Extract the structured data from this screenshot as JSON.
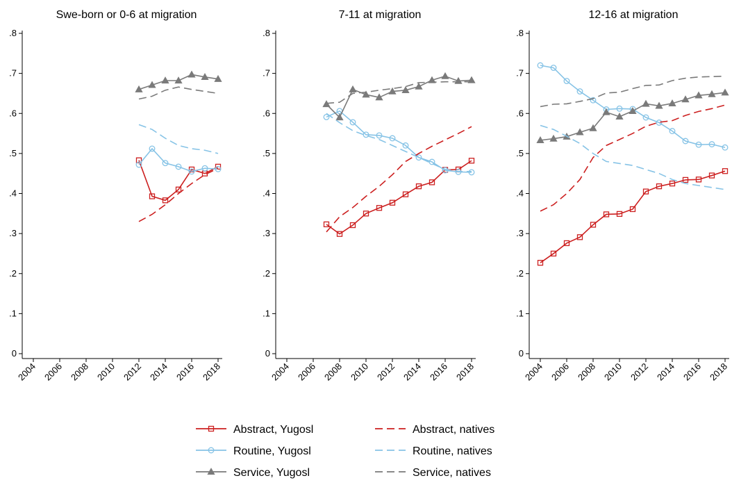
{
  "chart_data": [
    {
      "type": "line",
      "title": "Swe-born or 0-6 at migration",
      "x": [
        2012,
        2013,
        2014,
        2015,
        2016,
        2017,
        2018
      ],
      "xlim": [
        2004,
        2018
      ],
      "xticks": [
        2004,
        2006,
        2008,
        2010,
        2012,
        2014,
        2016,
        2018
      ],
      "ylim": [
        0,
        0.8
      ],
      "yticks": [
        0,
        {
          "value": 0.1,
          "label": ".1"
        },
        {
          "value": 0.2,
          "label": ".2"
        },
        {
          "value": 0.3,
          "label": ".3"
        },
        {
          "value": 0.4,
          "label": ".4"
        },
        {
          "value": 0.5,
          "label": ".5"
        },
        {
          "value": 0.6,
          "label": ".6"
        },
        {
          "value": 0.7,
          "label": ".7"
        },
        {
          "value": 0.8,
          "label": ".8"
        }
      ],
      "series": [
        {
          "name": "Abstract, Yugosl",
          "color": "#cc1f1f",
          "marker": "square",
          "dash": false,
          "values": [
            0.483,
            0.393,
            0.383,
            0.41,
            0.46,
            0.45,
            0.467
          ]
        },
        {
          "name": "Routine, Yugosl",
          "color": "#86c3e6",
          "marker": "circle",
          "dash": false,
          "values": [
            0.472,
            0.512,
            0.476,
            0.467,
            0.455,
            0.463,
            0.461
          ]
        },
        {
          "name": "Service, Yugosl",
          "color": "#7a7a7a",
          "marker": "triangle",
          "dash": false,
          "values": [
            0.66,
            0.671,
            0.682,
            0.682,
            0.697,
            0.691,
            0.686
          ]
        },
        {
          "name": "Abstract, natives",
          "color": "#cc1f1f",
          "marker": "none",
          "dash": true,
          "values": [
            0.33,
            0.348,
            0.372,
            0.4,
            0.425,
            0.447,
            0.463
          ]
        },
        {
          "name": "Routine, natives",
          "color": "#86c3e6",
          "marker": "none",
          "dash": true,
          "values": [
            0.572,
            0.56,
            0.538,
            0.52,
            0.512,
            0.508,
            0.5
          ]
        },
        {
          "name": "Service, natives",
          "color": "#7a7a7a",
          "marker": "none",
          "dash": true,
          "values": [
            0.636,
            0.643,
            0.658,
            0.666,
            0.66,
            0.655,
            0.65
          ]
        }
      ]
    },
    {
      "type": "line",
      "title": "7-11 at migration",
      "x": [
        2007,
        2008,
        2009,
        2010,
        2011,
        2012,
        2013,
        2014,
        2015,
        2016,
        2017,
        2018
      ],
      "xlim": [
        2004,
        2018
      ],
      "xticks": [
        2004,
        2006,
        2008,
        2010,
        2012,
        2014,
        2016,
        2018
      ],
      "ylim": [
        0,
        0.8
      ],
      "yticks": [
        0,
        {
          "value": 0.1,
          "label": ".1"
        },
        {
          "value": 0.2,
          "label": ".2"
        },
        {
          "value": 0.3,
          "label": ".3"
        },
        {
          "value": 0.4,
          "label": ".4"
        },
        {
          "value": 0.5,
          "label": ".5"
        },
        {
          "value": 0.6,
          "label": ".6"
        },
        {
          "value": 0.7,
          "label": ".7"
        },
        {
          "value": 0.8,
          "label": ".8"
        }
      ],
      "series": [
        {
          "color": "#cc1f1f",
          "marker": "square",
          "dash": false,
          "values": [
            0.323,
            0.299,
            0.321,
            0.35,
            0.364,
            0.377,
            0.398,
            0.418,
            0.428,
            0.459,
            0.46,
            0.482
          ]
        },
        {
          "color": "#86c3e6",
          "marker": "circle",
          "dash": false,
          "values": [
            0.591,
            0.606,
            0.578,
            0.547,
            0.545,
            0.538,
            0.52,
            0.49,
            0.479,
            0.458,
            0.454,
            0.453
          ]
        },
        {
          "color": "#7a7a7a",
          "marker": "triangle",
          "dash": false,
          "values": [
            0.623,
            0.59,
            0.66,
            0.647,
            0.64,
            0.655,
            0.658,
            0.667,
            0.683,
            0.693,
            0.681,
            0.683
          ]
        },
        {
          "color": "#cc1f1f",
          "marker": "none",
          "dash": true,
          "values": [
            0.304,
            0.342,
            0.365,
            0.393,
            0.418,
            0.447,
            0.48,
            0.5,
            0.518,
            0.534,
            0.55,
            0.567
          ]
        },
        {
          "color": "#86c3e6",
          "marker": "none",
          "dash": true,
          "values": [
            0.6,
            0.577,
            0.557,
            0.545,
            0.535,
            0.52,
            0.505,
            0.49,
            0.475,
            0.46,
            0.455,
            0.455
          ]
        },
        {
          "color": "#7a7a7a",
          "marker": "none",
          "dash": true,
          "values": [
            0.625,
            0.628,
            0.65,
            0.653,
            0.658,
            0.662,
            0.667,
            0.677,
            0.678,
            0.679,
            0.679,
            0.679
          ]
        }
      ]
    },
    {
      "type": "line",
      "title": "12-16 at migration",
      "x": [
        2004,
        2005,
        2006,
        2007,
        2008,
        2009,
        2010,
        2011,
        2012,
        2013,
        2014,
        2015,
        2016,
        2017,
        2018
      ],
      "xlim": [
        2004,
        2018
      ],
      "xticks": [
        2004,
        2006,
        2008,
        2010,
        2012,
        2014,
        2016,
        2018
      ],
      "ylim": [
        0,
        0.8
      ],
      "yticks": [
        0,
        {
          "value": 0.1,
          "label": ".1"
        },
        {
          "value": 0.2,
          "label": ".2"
        },
        {
          "value": 0.3,
          "label": ".3"
        },
        {
          "value": 0.4,
          "label": ".4"
        },
        {
          "value": 0.5,
          "label": ".5"
        },
        {
          "value": 0.6,
          "label": ".6"
        },
        {
          "value": 0.7,
          "label": ".7"
        },
        {
          "value": 0.8,
          "label": ".8"
        }
      ],
      "series": [
        {
          "color": "#cc1f1f",
          "marker": "square",
          "dash": false,
          "values": [
            0.227,
            0.25,
            0.276,
            0.291,
            0.322,
            0.348,
            0.349,
            0.361,
            0.405,
            0.418,
            0.425,
            0.434,
            0.435,
            0.445,
            0.456
          ]
        },
        {
          "color": "#86c3e6",
          "marker": "circle",
          "dash": false,
          "values": [
            0.72,
            0.714,
            0.681,
            0.655,
            0.633,
            0.61,
            0.612,
            0.611,
            0.59,
            0.577,
            0.556,
            0.531,
            0.522,
            0.523,
            0.515
          ]
        },
        {
          "color": "#7a7a7a",
          "marker": "triangle",
          "dash": false,
          "values": [
            0.533,
            0.537,
            0.542,
            0.553,
            0.563,
            0.603,
            0.592,
            0.606,
            0.624,
            0.619,
            0.625,
            0.635,
            0.645,
            0.648,
            0.652
          ]
        },
        {
          "color": "#cc1f1f",
          "marker": "none",
          "dash": true,
          "values": [
            0.356,
            0.372,
            0.4,
            0.435,
            0.49,
            0.52,
            0.535,
            0.55,
            0.568,
            0.578,
            0.582,
            0.595,
            0.605,
            0.612,
            0.621
          ]
        },
        {
          "color": "#86c3e6",
          "marker": "none",
          "dash": true,
          "values": [
            0.57,
            0.56,
            0.543,
            0.525,
            0.5,
            0.48,
            0.475,
            0.47,
            0.46,
            0.45,
            0.435,
            0.425,
            0.42,
            0.415,
            0.41
          ]
        },
        {
          "color": "#7a7a7a",
          "marker": "none",
          "dash": true,
          "values": [
            0.617,
            0.623,
            0.624,
            0.63,
            0.637,
            0.651,
            0.653,
            0.662,
            0.67,
            0.671,
            0.682,
            0.688,
            0.691,
            0.692,
            0.693
          ]
        }
      ]
    }
  ]
}
